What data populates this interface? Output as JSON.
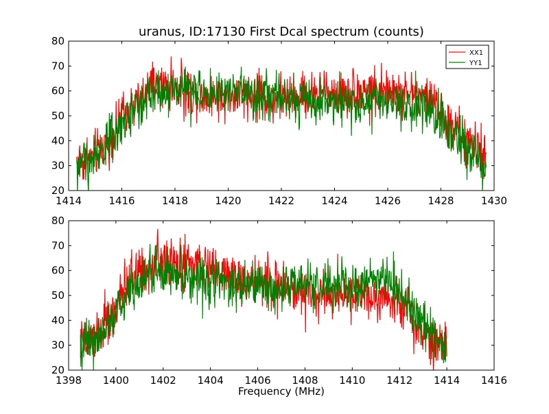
{
  "figure": {
    "title": "uranus, ID:17130 First Dcal spectrum (counts)",
    "xlabel": "Frequency (MHz)"
  },
  "colors": {
    "XX1": "#ff0000",
    "YY1": "#008000",
    "frame": "#000000",
    "background": "#ffffff"
  },
  "chart_data": [
    {
      "type": "line",
      "title": "uranus, ID:17130 First Dcal spectrum (counts)",
      "xlabel": "",
      "ylabel": "",
      "xlim": [
        1414,
        1430
      ],
      "ylim": [
        20,
        80
      ],
      "xticks": [
        1414,
        1416,
        1418,
        1420,
        1422,
        1424,
        1426,
        1428,
        1430
      ],
      "yticks": [
        20,
        30,
        40,
        50,
        60,
        70,
        80
      ],
      "grid": false,
      "legend": {
        "placement": "top-right",
        "entries": [
          "XX1",
          "YY1"
        ]
      },
      "noise_amplitude": {
        "XX1": 5,
        "YY1": 5
      },
      "series": [
        {
          "name": "XX1",
          "color": "#ff0000",
          "x": [
            1414.3,
            1414.8,
            1415.3,
            1415.8,
            1416.3,
            1416.8,
            1417.3,
            1417.8,
            1418.3,
            1418.8,
            1419.3,
            1419.8,
            1420.3,
            1420.8,
            1421.3,
            1421.8,
            1422.3,
            1422.8,
            1423.3,
            1423.8,
            1424.3,
            1424.8,
            1425.3,
            1425.8,
            1426.3,
            1426.8,
            1427.3,
            1427.8,
            1428.3,
            1428.8,
            1429.3,
            1429.7
          ],
          "y": [
            32,
            33,
            38,
            45,
            52,
            58,
            62,
            62,
            60,
            59,
            58,
            58,
            58,
            58,
            57,
            57,
            58,
            58,
            59,
            59,
            59,
            60,
            60,
            60,
            59,
            59,
            58,
            55,
            47,
            42,
            37,
            33
          ]
        },
        {
          "name": "YY1",
          "color": "#008000",
          "x": [
            1414.3,
            1414.8,
            1415.3,
            1415.8,
            1416.3,
            1416.8,
            1417.3,
            1417.8,
            1418.3,
            1418.8,
            1419.3,
            1419.8,
            1420.3,
            1420.8,
            1421.3,
            1421.8,
            1422.3,
            1422.8,
            1423.3,
            1423.8,
            1424.3,
            1424.8,
            1425.3,
            1425.8,
            1426.3,
            1426.8,
            1427.3,
            1427.8,
            1428.3,
            1428.8,
            1429.3,
            1429.7
          ],
          "y": [
            30,
            32,
            37,
            44,
            51,
            57,
            60,
            61,
            61,
            60,
            59,
            59,
            59,
            59,
            58,
            57,
            57,
            56,
            56,
            56,
            56,
            55,
            55,
            55,
            55,
            55,
            54,
            51,
            43,
            38,
            33,
            29
          ]
        }
      ]
    },
    {
      "type": "line",
      "title": "",
      "xlabel": "Frequency (MHz)",
      "ylabel": "",
      "xlim": [
        1398,
        1416
      ],
      "ylim": [
        20,
        80
      ],
      "xticks": [
        1398,
        1400,
        1402,
        1404,
        1406,
        1408,
        1410,
        1412,
        1414,
        1416
      ],
      "yticks": [
        20,
        30,
        40,
        50,
        60,
        70,
        80
      ],
      "grid": false,
      "legend": null,
      "noise_amplitude": {
        "XX1": 5,
        "YY1": 5
      },
      "series": [
        {
          "name": "XX1",
          "color": "#ff0000",
          "x": [
            1398.5,
            1399.0,
            1399.5,
            1400.0,
            1400.5,
            1401.0,
            1401.5,
            1402.0,
            1402.5,
            1403.0,
            1403.5,
            1404.0,
            1404.5,
            1405.0,
            1405.5,
            1406.0,
            1406.5,
            1407.0,
            1407.5,
            1408.0,
            1408.5,
            1409.0,
            1409.5,
            1410.0,
            1410.5,
            1411.0,
            1411.5,
            1412.0,
            1412.5,
            1413.0,
            1413.5,
            1414.0
          ],
          "y": [
            30,
            32,
            37,
            45,
            55,
            60,
            62,
            63,
            63,
            62,
            61,
            60,
            59,
            58,
            56,
            55,
            54,
            53,
            52,
            52,
            51,
            51,
            51,
            51,
            50,
            50,
            50,
            47,
            42,
            36,
            32,
            30
          ]
        },
        {
          "name": "YY1",
          "color": "#008000",
          "x": [
            1398.5,
            1399.0,
            1399.5,
            1400.0,
            1400.5,
            1401.0,
            1401.5,
            1402.0,
            1402.5,
            1403.0,
            1403.5,
            1404.0,
            1404.5,
            1405.0,
            1405.5,
            1406.0,
            1406.5,
            1407.0,
            1407.5,
            1408.0,
            1408.5,
            1409.0,
            1409.5,
            1410.0,
            1410.5,
            1411.0,
            1411.5,
            1412.0,
            1412.5,
            1413.0,
            1413.5,
            1414.0
          ],
          "y": [
            30,
            32,
            36,
            43,
            51,
            56,
            58,
            59,
            59,
            58,
            57,
            57,
            56,
            55,
            54,
            54,
            53,
            53,
            53,
            54,
            54,
            54,
            54,
            54,
            55,
            57,
            57,
            52,
            45,
            38,
            33,
            30
          ]
        }
      ]
    }
  ]
}
